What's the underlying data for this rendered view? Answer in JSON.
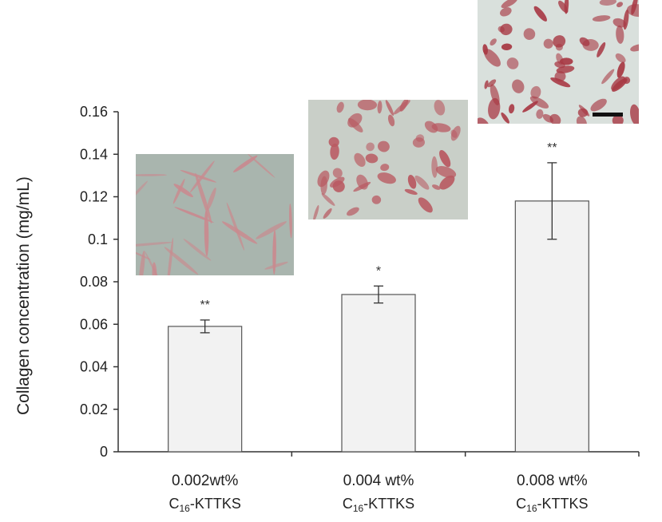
{
  "chart_data": {
    "type": "bar",
    "title": "",
    "xlabel": "",
    "ylabel": "Collagen concentration (mg/mL)",
    "ylim": [
      0,
      0.16
    ],
    "yticks": [
      "0",
      "0.02",
      "0.04",
      "0.06",
      "0.08",
      "0.1",
      "0.12",
      "0.14",
      "0.16"
    ],
    "categories": [
      {
        "line1": "0.002wt%",
        "line2_base": "C",
        "line2_sub": "16",
        "line2_rest": "-KTTKS"
      },
      {
        "line1": "0.004 wt%",
        "line2_base": "C",
        "line2_sub": "16",
        "line2_rest": "-KTTKS"
      },
      {
        "line1": "0.008 wt%",
        "line2_base": "C",
        "line2_sub": "16",
        "line2_rest": "-KTTKS"
      }
    ],
    "values": [
      0.059,
      0.074,
      0.118
    ],
    "errors": [
      0.003,
      0.004,
      0.018
    ],
    "significance": [
      "**",
      "*",
      "**"
    ],
    "grid": false,
    "bar_color": "#f2f2f2",
    "bar_edge_color": "#555555",
    "inset_images": [
      {
        "depicts": "elongated cells stained red on grey-green background",
        "tint": "#c98a8f"
      },
      {
        "depicts": "cells stained red on light background",
        "tint": "#b95a62"
      },
      {
        "depicts": "dense cells stained red with scale bar",
        "tint": "#a83a45"
      }
    ]
  }
}
